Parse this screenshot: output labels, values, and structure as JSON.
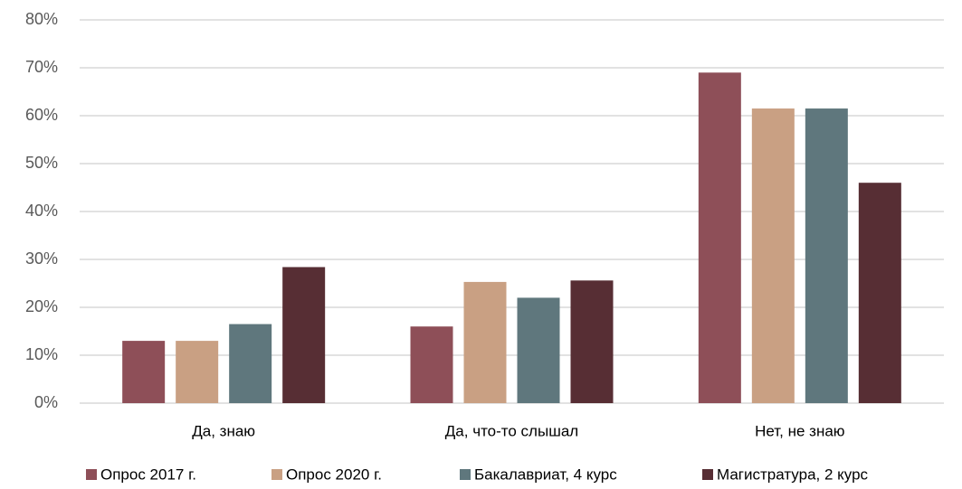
{
  "chart_data": {
    "type": "bar",
    "categories": [
      "Да, знаю",
      "Да, что-то слышал",
      "Нет, не знаю"
    ],
    "series": [
      {
        "name": "Опрос 2017 г.",
        "color": "#8e4f58",
        "values": [
          13,
          16,
          69
        ]
      },
      {
        "name": "Опрос 2020 г.",
        "color": "#c9a083",
        "values": [
          13,
          25.3,
          61.5
        ]
      },
      {
        "name": "Бакалавриат, 4 курс",
        "color": "#5f777d",
        "values": [
          16.5,
          22,
          61.5
        ]
      },
      {
        "name": "Магистратура, 2 курс",
        "color": "#572e34",
        "values": [
          28.4,
          25.6,
          46
        ]
      }
    ],
    "ylim": [
      0,
      80
    ],
    "yticks": [
      {
        "value": 0,
        "label": "0%"
      },
      {
        "value": 10,
        "label": "10%"
      },
      {
        "value": 20,
        "label": "20%"
      },
      {
        "value": 30,
        "label": "30%"
      },
      {
        "value": 40,
        "label": "40%"
      },
      {
        "value": 50,
        "label": "50%"
      },
      {
        "value": 60,
        "label": "60%"
      },
      {
        "value": 70,
        "label": "70%"
      },
      {
        "value": 80,
        "label": "80%"
      }
    ],
    "grid": true,
    "legend": "bottom"
  }
}
